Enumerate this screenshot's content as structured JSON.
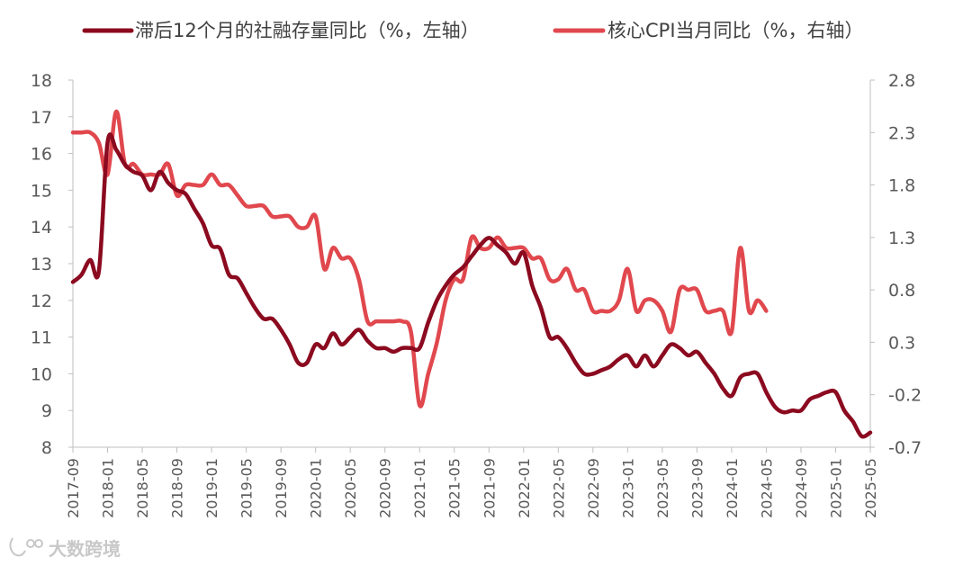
{
  "chart_data": {
    "type": "line",
    "title": "",
    "legend_position": "top",
    "grid": false,
    "y_left": {
      "ylim": [
        8,
        18
      ],
      "ticks": [
        8,
        9,
        10,
        11,
        12,
        13,
        14,
        15,
        16,
        17,
        18
      ]
    },
    "y_right": {
      "ylim": [
        -0.7,
        2.8
      ],
      "ticks": [
        "-0.7",
        "-0.2",
        "0.3",
        "0.8",
        "1.3",
        "1.8",
        "2.3",
        "2.8"
      ]
    },
    "x_ticks": [
      "2017-09",
      "2018-01",
      "2018-05",
      "2018-09",
      "2019-01",
      "2019-05",
      "2019-09",
      "2020-01",
      "2020-05",
      "2020-09",
      "2021-01",
      "2021-05",
      "2021-09",
      "2022-01",
      "2022-05",
      "2022-09",
      "2023-01",
      "2023-05",
      "2023-09",
      "2024-01",
      "2024-05",
      "2024-09",
      "2025-01",
      "2025-05"
    ],
    "series": [
      {
        "name": "滞后12个月的社融存量同比（%，左轴）",
        "axis": "left",
        "color": "#8b0a1f",
        "values": [
          [
            "2017-09",
            12.5
          ],
          [
            "2017-10",
            12.7
          ],
          [
            "2017-11",
            13.1
          ],
          [
            "2017-12",
            12.8
          ],
          [
            "2018-01",
            16.3
          ],
          [
            "2018-02",
            16.1
          ],
          [
            "2018-03",
            15.7
          ],
          [
            "2018-04",
            15.5
          ],
          [
            "2018-05",
            15.4
          ],
          [
            "2018-06",
            15.0
          ],
          [
            "2018-07",
            15.5
          ],
          [
            "2018-08",
            15.2
          ],
          [
            "2018-09",
            15.0
          ],
          [
            "2018-10",
            14.9
          ],
          [
            "2018-11",
            14.5
          ],
          [
            "2018-12",
            14.1
          ],
          [
            "2019-01",
            13.5
          ],
          [
            "2019-02",
            13.4
          ],
          [
            "2019-03",
            12.7
          ],
          [
            "2019-04",
            12.6
          ],
          [
            "2019-05",
            12.2
          ],
          [
            "2019-06",
            11.8
          ],
          [
            "2019-07",
            11.5
          ],
          [
            "2019-08",
            11.5
          ],
          [
            "2019-09",
            11.2
          ],
          [
            "2019-10",
            10.8
          ],
          [
            "2019-11",
            10.3
          ],
          [
            "2019-12",
            10.3
          ],
          [
            "2020-01",
            10.8
          ],
          [
            "2020-02",
            10.7
          ],
          [
            "2020-03",
            11.1
          ],
          [
            "2020-04",
            10.8
          ],
          [
            "2020-05",
            11.0
          ],
          [
            "2020-06",
            11.2
          ],
          [
            "2020-07",
            10.9
          ],
          [
            "2020-08",
            10.7
          ],
          [
            "2020-09",
            10.7
          ],
          [
            "2020-10",
            10.6
          ],
          [
            "2020-11",
            10.7
          ],
          [
            "2020-12",
            10.7
          ],
          [
            "2021-01",
            10.7
          ],
          [
            "2021-02",
            11.4
          ],
          [
            "2021-03",
            12.0
          ],
          [
            "2021-04",
            12.4
          ],
          [
            "2021-05",
            12.7
          ],
          [
            "2021-06",
            12.9
          ],
          [
            "2021-07",
            13.2
          ],
          [
            "2021-08",
            13.5
          ],
          [
            "2021-09",
            13.7
          ],
          [
            "2021-10",
            13.5
          ],
          [
            "2021-11",
            13.3
          ],
          [
            "2021-12",
            13.0
          ],
          [
            "2022-01",
            13.3
          ],
          [
            "2022-02",
            12.4
          ],
          [
            "2022-03",
            11.8
          ],
          [
            "2022-04",
            11.0
          ],
          [
            "2022-05",
            11.0
          ],
          [
            "2022-06",
            10.7
          ],
          [
            "2022-07",
            10.3
          ],
          [
            "2022-08",
            10.0
          ],
          [
            "2022-09",
            10.0
          ],
          [
            "2022-10",
            10.1
          ],
          [
            "2022-11",
            10.2
          ],
          [
            "2022-12",
            10.4
          ],
          [
            "2023-01",
            10.5
          ],
          [
            "2023-02",
            10.2
          ],
          [
            "2023-03",
            10.5
          ],
          [
            "2023-04",
            10.2
          ],
          [
            "2023-05",
            10.5
          ],
          [
            "2023-06",
            10.8
          ],
          [
            "2023-07",
            10.7
          ],
          [
            "2023-08",
            10.5
          ],
          [
            "2023-09",
            10.6
          ],
          [
            "2023-10",
            10.3
          ],
          [
            "2023-11",
            10.0
          ],
          [
            "2023-12",
            9.6
          ],
          [
            "2024-01",
            9.4
          ],
          [
            "2024-02",
            9.9
          ],
          [
            "2024-03",
            10.0
          ],
          [
            "2024-04",
            10.0
          ],
          [
            "2024-05",
            9.5
          ],
          [
            "2024-06",
            9.1
          ],
          [
            "2024-07",
            8.95
          ],
          [
            "2024-08",
            9.0
          ],
          [
            "2024-09",
            9.0
          ],
          [
            "2024-10",
            9.3
          ],
          [
            "2024-11",
            9.4
          ],
          [
            "2024-12",
            9.5
          ],
          [
            "2025-01",
            9.5
          ],
          [
            "2025-02",
            9.0
          ],
          [
            "2025-03",
            8.7
          ],
          [
            "2025-04",
            8.3
          ],
          [
            "2025-05",
            8.4
          ]
        ]
      },
      {
        "name": "核心CPI当月同比（%，右轴）",
        "axis": "right",
        "color": "#e0484e",
        "values": [
          [
            "2017-09",
            2.3
          ],
          [
            "2017-10",
            2.3
          ],
          [
            "2017-11",
            2.3
          ],
          [
            "2017-12",
            2.2
          ],
          [
            "2018-01",
            1.9
          ],
          [
            "2018-02",
            2.5
          ],
          [
            "2018-03",
            2.0
          ],
          [
            "2018-04",
            2.0
          ],
          [
            "2018-05",
            1.9
          ],
          [
            "2018-06",
            1.9
          ],
          [
            "2018-07",
            1.9
          ],
          [
            "2018-08",
            2.0
          ],
          [
            "2018-09",
            1.7
          ],
          [
            "2018-10",
            1.8
          ],
          [
            "2018-11",
            1.8
          ],
          [
            "2018-12",
            1.8
          ],
          [
            "2019-01",
            1.9
          ],
          [
            "2019-02",
            1.8
          ],
          [
            "2019-03",
            1.8
          ],
          [
            "2019-04",
            1.7
          ],
          [
            "2019-05",
            1.6
          ],
          [
            "2019-06",
            1.6
          ],
          [
            "2019-07",
            1.6
          ],
          [
            "2019-08",
            1.5
          ],
          [
            "2019-09",
            1.5
          ],
          [
            "2019-10",
            1.5
          ],
          [
            "2019-11",
            1.4
          ],
          [
            "2019-12",
            1.4
          ],
          [
            "2020-01",
            1.5
          ],
          [
            "2020-02",
            1.0
          ],
          [
            "2020-03",
            1.2
          ],
          [
            "2020-04",
            1.1
          ],
          [
            "2020-05",
            1.1
          ],
          [
            "2020-06",
            0.9
          ],
          [
            "2020-07",
            0.5
          ],
          [
            "2020-08",
            0.5
          ],
          [
            "2020-09",
            0.5
          ],
          [
            "2020-10",
            0.5
          ],
          [
            "2020-11",
            0.5
          ],
          [
            "2020-12",
            0.4
          ],
          [
            "2021-01",
            -0.3
          ],
          [
            "2021-02",
            0.0
          ],
          [
            "2021-03",
            0.3
          ],
          [
            "2021-04",
            0.7
          ],
          [
            "2021-05",
            0.9
          ],
          [
            "2021-06",
            0.9
          ],
          [
            "2021-07",
            1.3
          ],
          [
            "2021-08",
            1.2
          ],
          [
            "2021-09",
            1.2
          ],
          [
            "2021-10",
            1.3
          ],
          [
            "2021-11",
            1.2
          ],
          [
            "2021-12",
            1.2
          ],
          [
            "2022-01",
            1.2
          ],
          [
            "2022-02",
            1.1
          ],
          [
            "2022-03",
            1.1
          ],
          [
            "2022-04",
            0.9
          ],
          [
            "2022-05",
            0.9
          ],
          [
            "2022-06",
            1.0
          ],
          [
            "2022-07",
            0.8
          ],
          [
            "2022-08",
            0.8
          ],
          [
            "2022-09",
            0.6
          ],
          [
            "2022-10",
            0.6
          ],
          [
            "2022-11",
            0.6
          ],
          [
            "2022-12",
            0.7
          ],
          [
            "2023-01",
            1.0
          ],
          [
            "2023-02",
            0.6
          ],
          [
            "2023-03",
            0.7
          ],
          [
            "2023-04",
            0.7
          ],
          [
            "2023-05",
            0.6
          ],
          [
            "2023-06",
            0.4
          ],
          [
            "2023-07",
            0.8
          ],
          [
            "2023-08",
            0.8
          ],
          [
            "2023-09",
            0.8
          ],
          [
            "2023-10",
            0.6
          ],
          [
            "2023-11",
            0.6
          ],
          [
            "2023-12",
            0.6
          ],
          [
            "2024-01",
            0.4
          ],
          [
            "2024-02",
            1.2
          ],
          [
            "2024-03",
            0.6
          ],
          [
            "2024-04",
            0.7
          ],
          [
            "2024-05",
            0.6
          ]
        ]
      }
    ]
  },
  "watermark": {
    "text": "大数跨境"
  }
}
